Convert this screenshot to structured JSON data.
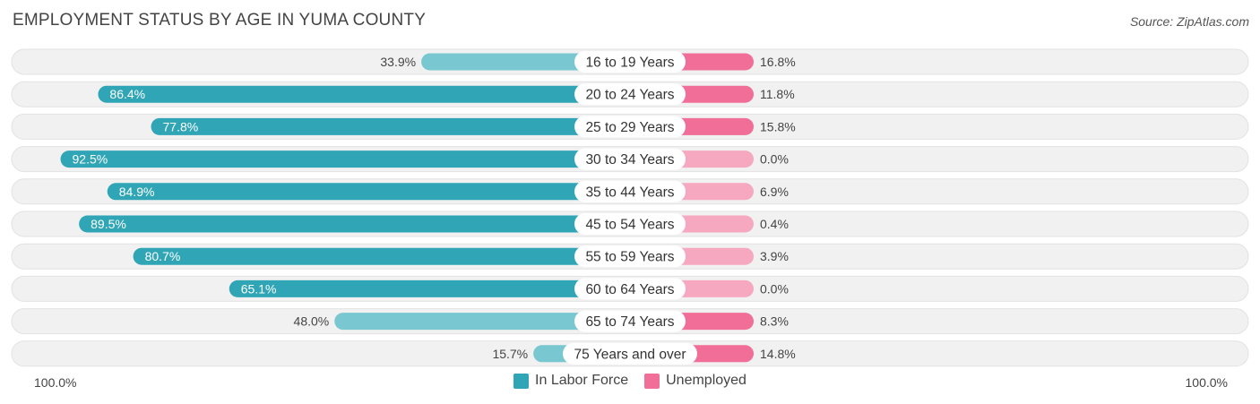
{
  "header": {
    "title": "EMPLOYMENT STATUS BY AGE IN YUMA COUNTY",
    "source": "Source: ZipAtlas.com"
  },
  "colors": {
    "labor_force_strong": "#2fa5b6",
    "labor_force_light": "#79c7d1",
    "unemployed_strong": "#f06e97",
    "unemployed_light": "#f7a8c1",
    "row_background": "#f1f1f1"
  },
  "chart_data": {
    "type": "bar",
    "orientation": "horizontal-diverging",
    "categories": [
      "16 to 19 Years",
      "20 to 24 Years",
      "25 to 29 Years",
      "30 to 34 Years",
      "35 to 44 Years",
      "45 to 54 Years",
      "55 to 59 Years",
      "60 to 64 Years",
      "65 to 74 Years",
      "75 Years and over"
    ],
    "series": [
      {
        "name": "In Labor Force",
        "values": [
          33.9,
          86.4,
          77.8,
          92.5,
          84.9,
          89.5,
          80.7,
          65.1,
          48.0,
          15.7
        ],
        "labels": [
          "33.9%",
          "86.4%",
          "77.8%",
          "92.5%",
          "84.9%",
          "89.5%",
          "80.7%",
          "65.1%",
          "48.0%",
          "15.7%"
        ]
      },
      {
        "name": "Unemployed",
        "values": [
          16.8,
          11.8,
          15.8,
          0.0,
          6.9,
          0.4,
          3.9,
          0.0,
          8.3,
          14.8
        ],
        "labels": [
          "16.8%",
          "11.8%",
          "15.8%",
          "0.0%",
          "6.9%",
          "0.4%",
          "3.9%",
          "0.0%",
          "8.3%",
          "14.8%"
        ]
      }
    ],
    "axis": {
      "left_label": "100.0%",
      "right_label": "100.0%",
      "xlim_left": [
        0,
        100
      ],
      "xlim_right": [
        0,
        100
      ]
    },
    "legend_position": "bottom-center"
  }
}
